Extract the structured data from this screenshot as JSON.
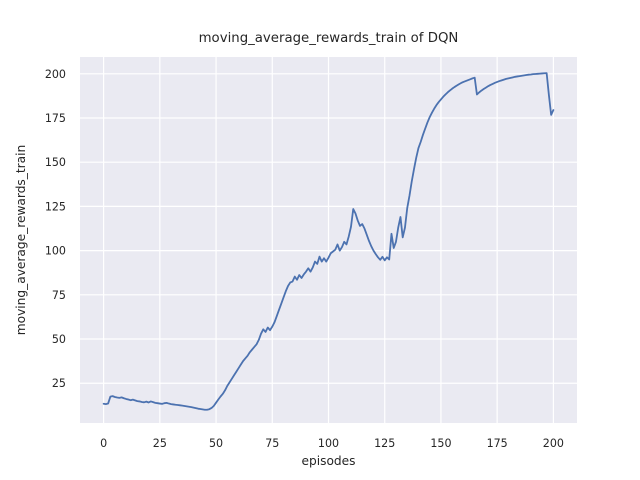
{
  "window": {
    "title": "moving_average_rewards_train of DQN"
  },
  "colors": {
    "figure_bg": "#ffffff",
    "plot_bg": "#eaeaf2",
    "grid": "#ffffff",
    "line": "#4c72b0",
    "text": "#262626"
  },
  "chart_data": {
    "type": "line",
    "title": "moving_average_rewards_train of DQN",
    "xlabel": "episodes",
    "ylabel": "moving_average_rewards_train",
    "legend": null,
    "grid": true,
    "x_ticks": [
      0,
      25,
      50,
      75,
      100,
      125,
      150,
      175,
      200
    ],
    "y_ticks": [
      25,
      50,
      75,
      100,
      125,
      150,
      175,
      200
    ],
    "xlim": [
      -10.5,
      210.5
    ],
    "ylim": [
      2.5,
      209.5
    ],
    "series": [
      {
        "name": "moving_average_rewards_train",
        "x_start": 0,
        "x_step": 1,
        "y": [
          13.4,
          13.2,
          13.5,
          17.4,
          17.7,
          17.2,
          16.9,
          16.7,
          17.0,
          16.5,
          16.1,
          15.8,
          15.4,
          15.7,
          15.3,
          14.9,
          14.7,
          14.4,
          14.2,
          14.6,
          14.1,
          14.7,
          14.3,
          13.9,
          13.7,
          13.5,
          13.3,
          13.7,
          13.9,
          13.5,
          13.2,
          13.0,
          12.8,
          12.7,
          12.5,
          12.3,
          12.1,
          11.9,
          11.7,
          11.5,
          11.2,
          10.9,
          10.6,
          10.4,
          10.2,
          10.0,
          10.0,
          10.3,
          11.0,
          12.2,
          14.0,
          15.8,
          17.5,
          19.0,
          21.0,
          23.5,
          25.5,
          27.5,
          29.5,
          31.5,
          33.5,
          35.5,
          37.5,
          39.0,
          40.5,
          42.5,
          44.0,
          45.5,
          47.0,
          49.5,
          53.0,
          55.5,
          54.0,
          56.5,
          55.0,
          57.0,
          59.5,
          63.0,
          66.5,
          70.0,
          73.5,
          77.0,
          80.0,
          82.0,
          82.5,
          85.3,
          83.5,
          86.2,
          84.5,
          86.5,
          88.1,
          90.0,
          88.1,
          90.5,
          93.8,
          92.5,
          96.6,
          93.8,
          95.7,
          93.8,
          96.0,
          98.5,
          99.5,
          100.5,
          103.5,
          100.0,
          102.0,
          105.0,
          103.5,
          108.0,
          113.5,
          123.5,
          121.0,
          117.0,
          114.0,
          115.0,
          112.5,
          109.0,
          105.5,
          102.5,
          100.0,
          98.0,
          96.2,
          94.8,
          96.5,
          94.5,
          96.2,
          95.0,
          109.5,
          101.5,
          105.0,
          113.0,
          119.0,
          107.5,
          113.0,
          124.0,
          131.0,
          139.0,
          146.0,
          152.5,
          158.0,
          161.5,
          165.5,
          169.0,
          172.5,
          175.5,
          178.0,
          180.3,
          182.3,
          184.0,
          185.5,
          187.0,
          188.3,
          189.5,
          190.6,
          191.6,
          192.5,
          193.3,
          194.1,
          194.8,
          195.4,
          195.9,
          196.4,
          196.9,
          197.4,
          197.8,
          188.3,
          189.5,
          190.5,
          191.4,
          192.2,
          193.0,
          193.7,
          194.3,
          194.9,
          195.4,
          195.9,
          196.3,
          196.7,
          197.1,
          197.4,
          197.7,
          198.0,
          198.3,
          198.5,
          198.7,
          198.9,
          199.1,
          199.3,
          199.5,
          199.6,
          199.8,
          199.9,
          200.0,
          200.1,
          200.2,
          200.3,
          200.4,
          188.0,
          176.8,
          179.5
        ]
      }
    ]
  }
}
